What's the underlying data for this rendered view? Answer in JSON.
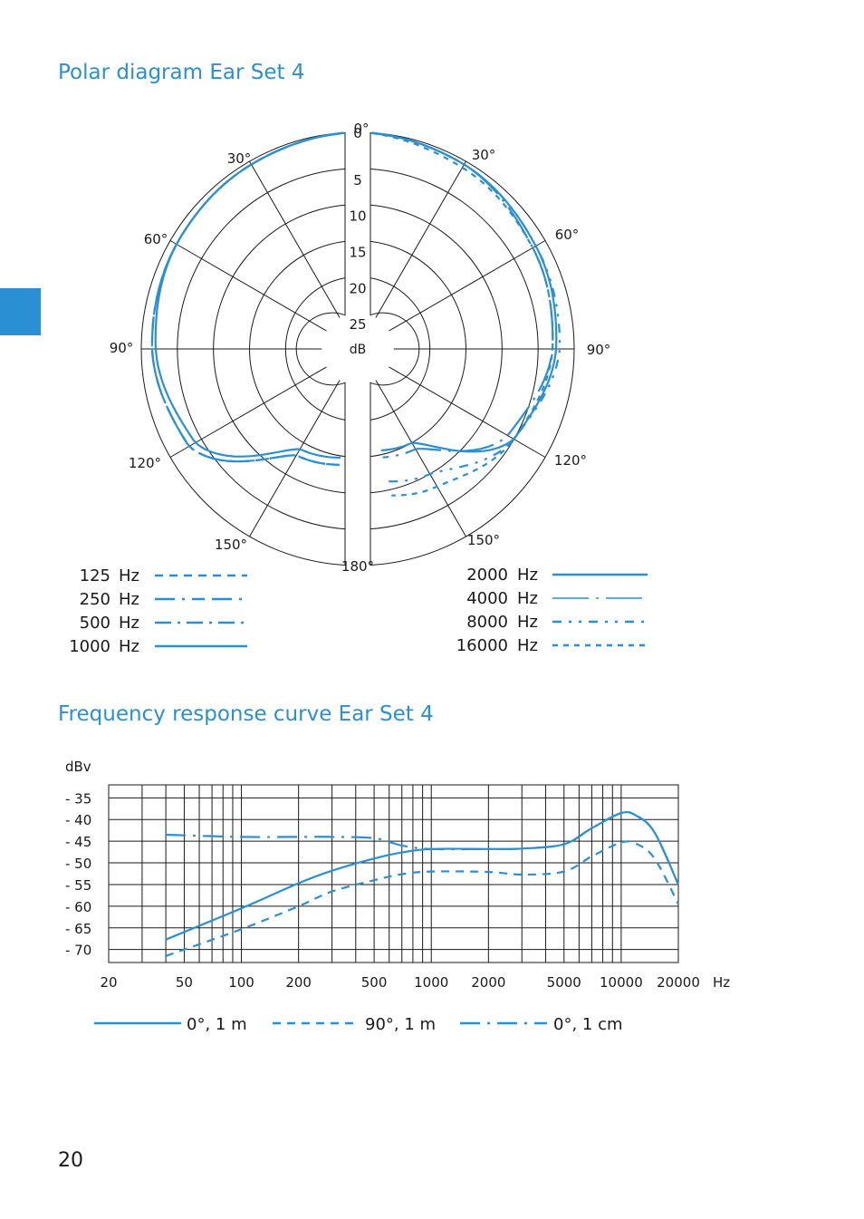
{
  "page_number": "20",
  "colors": {
    "accent": "#2b8fd4",
    "ink": "#1a1a1a"
  },
  "polar": {
    "title": "Polar diagram Ear Set 4",
    "db_unit": "dB",
    "db_ticks": [
      "0",
      "5",
      "10",
      "15",
      "20",
      "25"
    ],
    "angle_labels": [
      "0°",
      "30°",
      "30°",
      "60°",
      "60°",
      "90°",
      "90°",
      "120°",
      "120°",
      "150°",
      "150°",
      "180°"
    ],
    "legend_left": [
      {
        "freq": "125",
        "unit": "Hz",
        "style": "dashed"
      },
      {
        "freq": "250",
        "unit": "Hz",
        "style": "long-dash-dot"
      },
      {
        "freq": "500",
        "unit": "Hz",
        "style": "dash-dot"
      },
      {
        "freq": "1000",
        "unit": "Hz",
        "style": "solid"
      }
    ],
    "legend_right": [
      {
        "freq": "2000",
        "unit": "Hz",
        "style": "solid"
      },
      {
        "freq": "4000",
        "unit": "Hz",
        "style": "thin-dash-dot"
      },
      {
        "freq": "8000",
        "unit": "Hz",
        "style": "dash-dot-dot"
      },
      {
        "freq": "16000",
        "unit": "Hz",
        "style": "short-dash"
      }
    ]
  },
  "frequency": {
    "title": "Frequency response curve Ear Set 4",
    "y_unit": "dBv",
    "y_ticks": [
      "- 35",
      "- 40",
      "- 45",
      "- 50",
      "- 55",
      "- 60",
      "- 65",
      "- 70"
    ],
    "x_ticks": [
      "20",
      "50",
      "100",
      "200",
      "500",
      "1000",
      "2000",
      "5000",
      "10000",
      "20000"
    ],
    "x_unit": "Hz",
    "legend": [
      "0°, 1 m",
      "90°, 1 m",
      "0°, 1 cm"
    ]
  },
  "chart_data": [
    {
      "type": "line",
      "title": "Polar diagram Ear Set 4",
      "axis": "angle_deg",
      "radial_unit": "dB",
      "radial_range": [
        0,
        25
      ],
      "angle_ticks": [
        0,
        30,
        60,
        90,
        120,
        150,
        180
      ],
      "angles": [
        0,
        30,
        60,
        90,
        120,
        150,
        180
      ],
      "series": [
        {
          "name": "125 Hz",
          "values": [
            0,
            0.5,
            1,
            1.5,
            3,
            13,
            14
          ]
        },
        {
          "name": "250 Hz",
          "values": [
            0,
            0.5,
            1,
            1.5,
            3,
            13,
            14
          ]
        },
        {
          "name": "500 Hz",
          "values": [
            0,
            0.5,
            1,
            1.5,
            3,
            13,
            14
          ]
        },
        {
          "name": "1000 Hz",
          "values": [
            0,
            0.5,
            1,
            2,
            4,
            14,
            15
          ]
        },
        {
          "name": "2000 Hz",
          "values": [
            0,
            0.5,
            1.5,
            2.5,
            5,
            15,
            16
          ]
        },
        {
          "name": "4000 Hz",
          "values": [
            0,
            0.5,
            2,
            3,
            6,
            14,
            15
          ]
        },
        {
          "name": "8000 Hz",
          "values": [
            0,
            0.5,
            1.5,
            2,
            5,
            10,
            12
          ]
        },
        {
          "name": "16000 Hz",
          "values": [
            0,
            1,
            2,
            3,
            5,
            8,
            10
          ]
        }
      ]
    },
    {
      "type": "line",
      "title": "Frequency response curve Ear Set 4",
      "ylabel": "dBv",
      "xlabel": "Hz",
      "x_scale": "log",
      "xlim": [
        20,
        20000
      ],
      "ylim": [
        -73,
        -32
      ],
      "x": [
        40,
        100,
        200,
        300,
        500,
        700,
        1000,
        2000,
        3000,
        5000,
        7000,
        10000,
        12000,
        15000,
        20000
      ],
      "series": [
        {
          "name": "0°, 1 m",
          "values": [
            -67.7,
            -60.5,
            -54.7,
            -51.8,
            -49,
            -47.6,
            -46.8,
            -46.8,
            -46.7,
            -45.7,
            -42,
            -38.5,
            -39.1,
            -43,
            -55
          ]
        },
        {
          "name": "90°, 1 m",
          "values": [
            -71.5,
            -65.3,
            -60,
            -56.6,
            -54,
            -52.6,
            -52,
            -52.1,
            -52.7,
            -52,
            -48.5,
            -45.3,
            -45.6,
            -49,
            -59.5
          ]
        },
        {
          "name": "0°, 1 cm",
          "values": [
            -43.5,
            -44,
            -44,
            -44,
            -44.3,
            -46,
            -46.8,
            -46.8,
            -46.7,
            -45.7,
            -42,
            -38.5,
            -39.1,
            -43,
            -55
          ]
        }
      ]
    }
  ]
}
